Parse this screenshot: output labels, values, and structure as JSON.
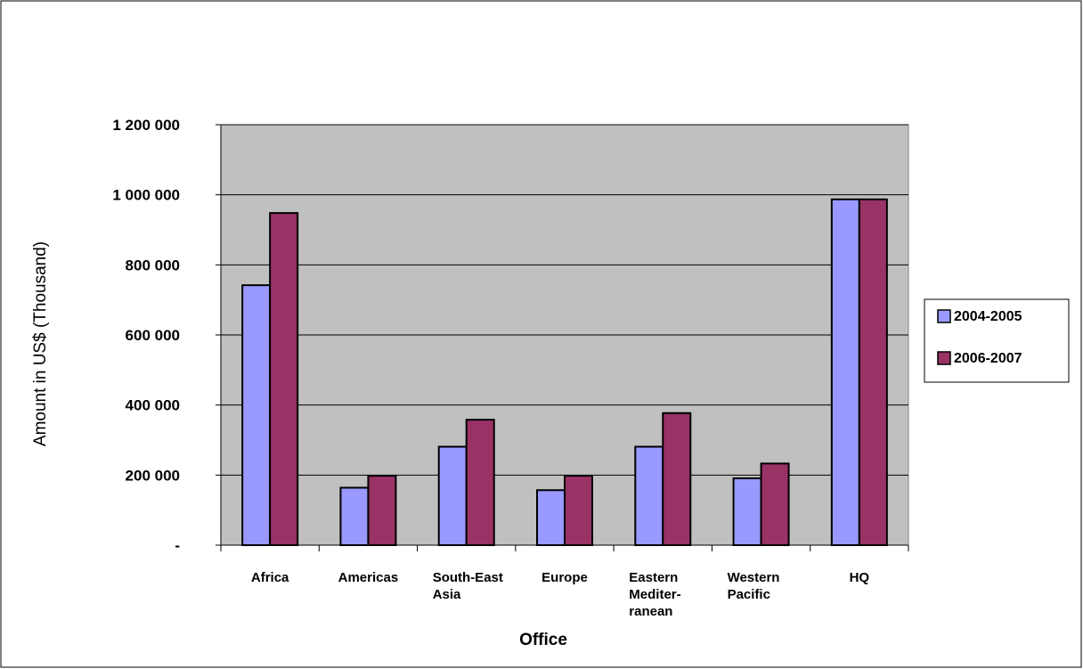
{
  "chart_data": {
    "type": "bar",
    "title": "",
    "xlabel": "Office",
    "ylabel": "Amount in US$ (Thousand)",
    "categories": [
      [
        "Africa"
      ],
      [
        "Americas"
      ],
      [
        "South-East",
        "Asia"
      ],
      [
        "Europe"
      ],
      [
        "Eastern",
        "Mediter-",
        "ranean"
      ],
      [
        "Western",
        "Pacific"
      ],
      [
        "HQ"
      ]
    ],
    "series": [
      {
        "name": "2004-2005",
        "color": "#9999ff",
        "values": [
          742000,
          164000,
          281000,
          157000,
          281000,
          191000,
          987000
        ]
      },
      {
        "name": "2006-2007",
        "color": "#993366",
        "values": [
          948000,
          198000,
          358000,
          198000,
          377000,
          233000,
          987000
        ]
      }
    ],
    "ylim": [
      0,
      1200000
    ],
    "yticks": [
      0,
      200000,
      400000,
      600000,
      800000,
      1000000,
      1200000
    ],
    "ytick_labels": [
      "-",
      "200 000",
      "400 000",
      "600 000",
      "800 000",
      "1 000 000",
      "1 200 000"
    ],
    "plot_background": "#c0c0c0",
    "grid": true,
    "legend_position": "right"
  }
}
